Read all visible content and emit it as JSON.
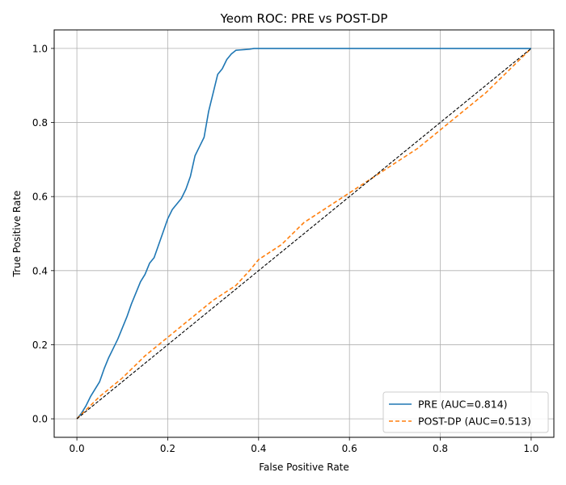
{
  "chart_data": {
    "type": "line",
    "title": "Yeom ROC: PRE vs POST-DP",
    "xlabel": "False Positive Rate",
    "ylabel": "True Positive Rate",
    "xlim": [
      -0.05,
      1.05
    ],
    "ylim": [
      -0.05,
      1.05
    ],
    "xticks": [
      0.0,
      0.2,
      0.4,
      0.6,
      0.8,
      1.0
    ],
    "yticks": [
      0.0,
      0.2,
      0.4,
      0.6,
      0.8,
      1.0
    ],
    "xtick_labels": [
      "0.0",
      "0.2",
      "0.4",
      "0.6",
      "0.8",
      "1.0"
    ],
    "ytick_labels": [
      "0.0",
      "0.2",
      "0.4",
      "0.6",
      "0.8",
      "1.0"
    ],
    "grid": true,
    "legend_position": "lower-right",
    "series": [
      {
        "name": "PRE (AUC=0.814)",
        "style": "solid",
        "color": "#1f77b4",
        "x": [
          0.0,
          0.01,
          0.02,
          0.03,
          0.04,
          0.05,
          0.06,
          0.07,
          0.08,
          0.09,
          0.1,
          0.11,
          0.12,
          0.13,
          0.14,
          0.15,
          0.16,
          0.17,
          0.18,
          0.19,
          0.2,
          0.21,
          0.22,
          0.23,
          0.24,
          0.25,
          0.26,
          0.27,
          0.28,
          0.29,
          0.3,
          0.31,
          0.32,
          0.33,
          0.34,
          0.35,
          0.36,
          0.37,
          0.38,
          0.39,
          0.4,
          0.5,
          0.6,
          0.7,
          0.8,
          0.9,
          1.0
        ],
        "y": [
          0.0,
          0.015,
          0.035,
          0.06,
          0.08,
          0.1,
          0.135,
          0.165,
          0.19,
          0.215,
          0.245,
          0.275,
          0.31,
          0.34,
          0.37,
          0.39,
          0.42,
          0.435,
          0.47,
          0.505,
          0.54,
          0.565,
          0.58,
          0.595,
          0.62,
          0.655,
          0.71,
          0.735,
          0.76,
          0.83,
          0.88,
          0.93,
          0.945,
          0.97,
          0.985,
          0.995,
          0.996,
          0.997,
          0.998,
          1.0,
          1.0,
          1.0,
          1.0,
          1.0,
          1.0,
          1.0,
          1.0
        ]
      },
      {
        "name": "POST-DP (AUC=0.513)",
        "style": "dashed",
        "color": "#ff7f0e",
        "x": [
          0.0,
          0.05,
          0.1,
          0.15,
          0.2,
          0.25,
          0.3,
          0.35,
          0.38,
          0.4,
          0.45,
          0.5,
          0.55,
          0.6,
          0.65,
          0.7,
          0.75,
          0.8,
          0.85,
          0.9,
          0.95,
          1.0
        ],
        "y": [
          0.0,
          0.06,
          0.11,
          0.17,
          0.22,
          0.27,
          0.32,
          0.36,
          0.4,
          0.43,
          0.47,
          0.53,
          0.57,
          0.61,
          0.65,
          0.69,
          0.73,
          0.78,
          0.83,
          0.88,
          0.94,
          1.0
        ]
      },
      {
        "name": "",
        "style": "dashed",
        "color": "#000000",
        "x": [
          0.0,
          1.0
        ],
        "y": [
          0.0,
          1.0
        ]
      }
    ]
  }
}
